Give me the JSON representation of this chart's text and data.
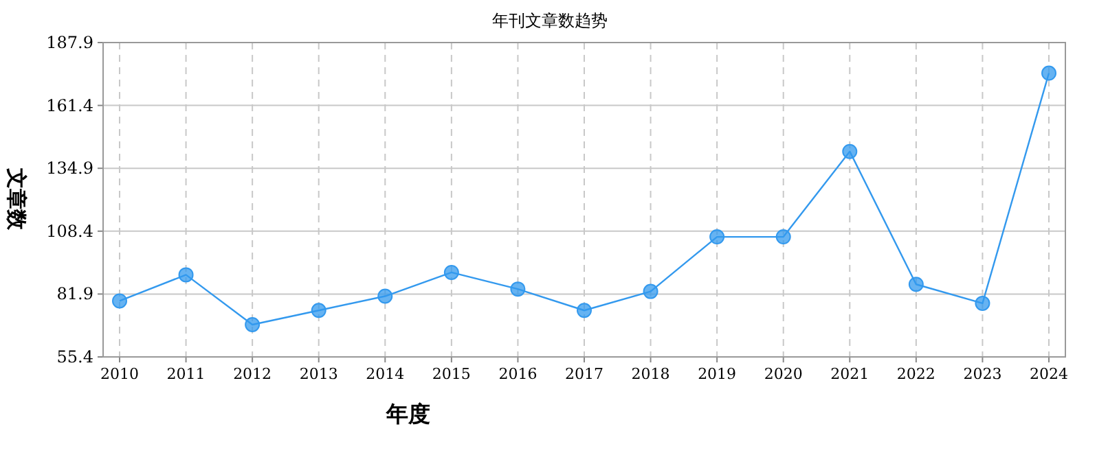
{
  "chart_data": {
    "type": "line",
    "title": "年刊文章数趋势",
    "xlabel": "年度",
    "ylabel": "文章数",
    "categories": [
      "2010",
      "2011",
      "2012",
      "2013",
      "2014",
      "2015",
      "2016",
      "2017",
      "2018",
      "2019",
      "2020",
      "2021",
      "2022",
      "2023",
      "2024"
    ],
    "series": [
      {
        "color": "#3399ee",
        "values": [
          79,
          90,
          69,
          75,
          81,
          91,
          84,
          75,
          83,
          106,
          106,
          142,
          86,
          78,
          175
        ]
      }
    ],
    "ylim": [
      55.4,
      187.9
    ],
    "yticks": [
      55.4,
      81.9,
      108.4,
      134.9,
      161.4,
      187.9
    ],
    "grid": true,
    "marker": "circle",
    "line_style": "solid"
  }
}
